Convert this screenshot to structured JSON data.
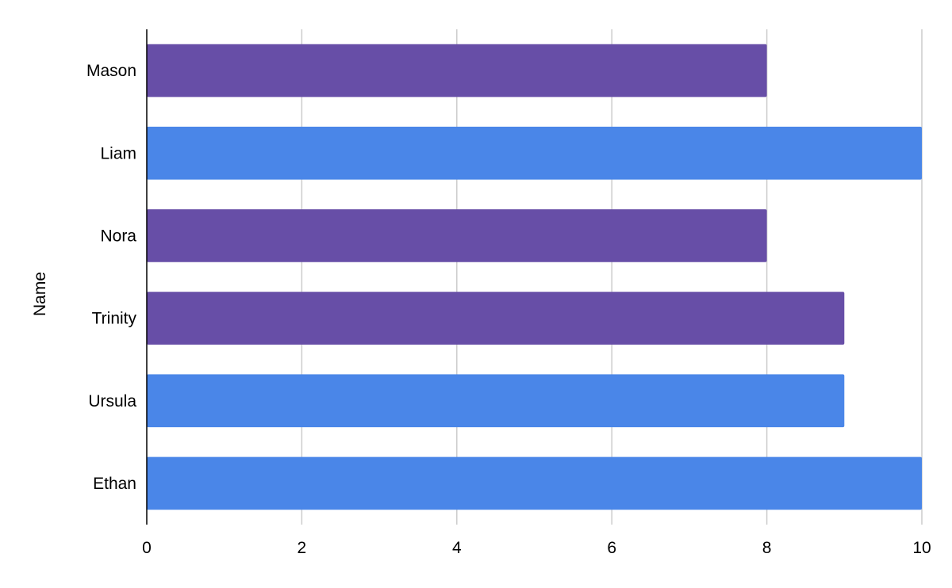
{
  "chart_data": {
    "type": "bar",
    "orientation": "horizontal",
    "title": "",
    "xlabel": "",
    "ylabel": "Name",
    "xlim": [
      0,
      10
    ],
    "xticks": [
      0,
      2,
      4,
      6,
      8,
      10
    ],
    "grid": true,
    "legend": "none",
    "categories": [
      "Mason",
      "Liam",
      "Nora",
      "Trinity",
      "Ursula",
      "Ethan"
    ],
    "values": [
      8,
      10,
      8,
      9,
      9,
      10
    ],
    "bar_colors": [
      "#674ea7",
      "#4a86e8",
      "#674ea7",
      "#674ea7",
      "#4a86e8",
      "#4a86e8"
    ]
  }
}
